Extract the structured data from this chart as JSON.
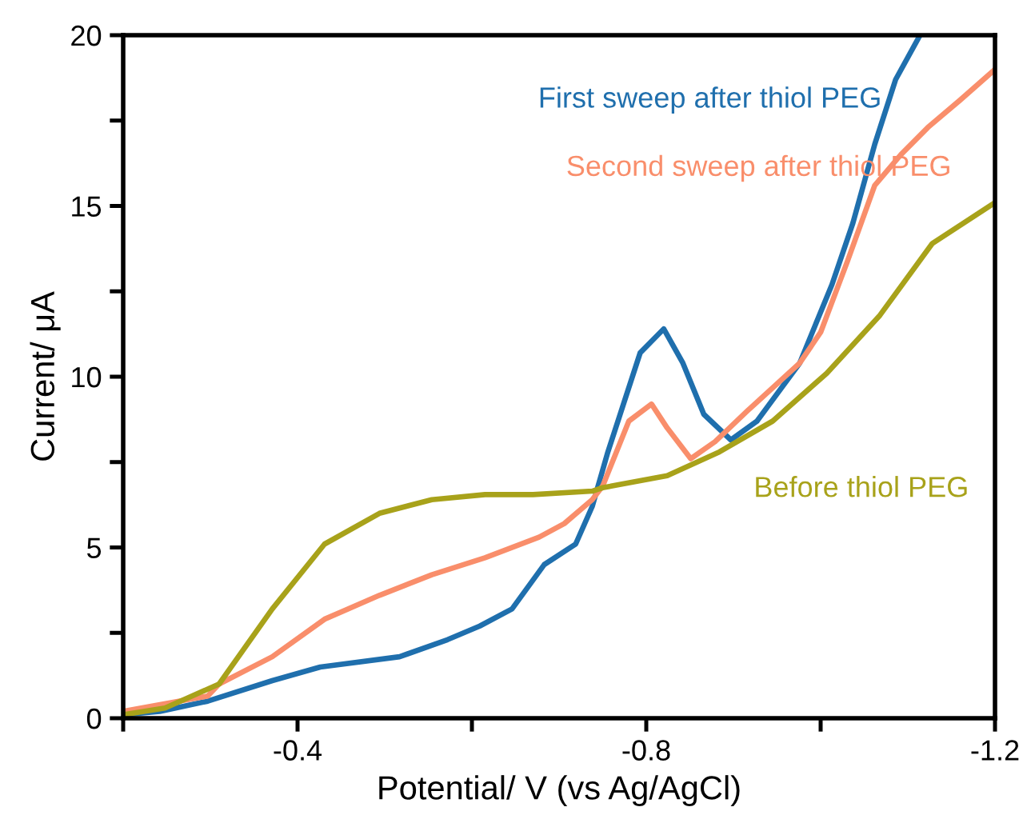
{
  "chart_data": {
    "type": "line",
    "xlabel": "Potential/ V (vs Ag/AgCl)",
    "ylabel": "Current/ μA",
    "xlim": [
      -0.2,
      -1.2
    ],
    "xticks": [
      {
        "value": -0.2,
        "label": null
      },
      -0.4,
      {
        "value": -0.6,
        "label": null
      },
      -0.8,
      {
        "value": -1.0,
        "label": null
      },
      -1.2
    ],
    "ylim": [
      0,
      20
    ],
    "yticks": [
      0,
      {
        "value": 2.5,
        "label": null
      },
      5,
      {
        "value": 7.5,
        "label": null
      },
      10,
      {
        "value": 12.5,
        "label": null
      },
      15,
      {
        "value": 17.5,
        "label": null
      },
      20
    ],
    "grid": false,
    "legend": false,
    "marker": "none",
    "line_style": "solid",
    "series": [
      {
        "name": "First sweep after thiol PEG",
        "color": "#1f6fad",
        "x": [
          -0.2,
          -0.242,
          -0.297,
          -0.371,
          -0.426,
          -0.517,
          -0.572,
          -0.609,
          -0.646,
          -0.683,
          -0.719,
          -0.738,
          -0.756,
          -0.793,
          -0.82,
          -0.842,
          -0.866,
          -0.897,
          -0.927,
          -0.976,
          -1.013,
          -1.037,
          -1.062,
          -1.086,
          -1.114
        ],
        "values": [
          0.1,
          0.2,
          0.5,
          1.1,
          1.5,
          1.8,
          2.3,
          2.7,
          3.2,
          4.5,
          5.1,
          6.2,
          7.8,
          10.7,
          11.4,
          10.4,
          8.9,
          8.15,
          8.7,
          10.4,
          12.7,
          14.5,
          16.8,
          18.7,
          20
        ]
      },
      {
        "name": "Second sweep after thiol PEG",
        "color": "#f98e6b",
        "x": [
          -0.2,
          -0.297,
          -0.31,
          -0.371,
          -0.431,
          -0.494,
          -0.554,
          -0.615,
          -0.677,
          -0.706,
          -0.738,
          -0.75,
          -0.78,
          -0.806,
          -0.824,
          -0.851,
          -0.879,
          -0.916,
          -0.976,
          -1.0,
          -1.031,
          -1.062,
          -1.092,
          -1.123,
          -1.16,
          -1.2
        ],
        "values": [
          0.2,
          0.65,
          1.0,
          1.8,
          2.9,
          3.6,
          4.2,
          4.7,
          5.3,
          5.7,
          6.4,
          6.8,
          8.7,
          9.2,
          8.5,
          7.6,
          8.1,
          9.0,
          10.4,
          11.3,
          13.4,
          15.6,
          16.5,
          17.3,
          18.1,
          19.0
        ]
      },
      {
        "name": "Before thiol PEG",
        "color": "#a8a21a",
        "x": [
          -0.2,
          -0.248,
          -0.31,
          -0.371,
          -0.431,
          -0.494,
          -0.554,
          -0.615,
          -0.67,
          -0.738,
          -0.75,
          -0.824,
          -0.884,
          -0.945,
          -1.007,
          -1.068,
          -1.128,
          -1.2
        ],
        "values": [
          0.1,
          0.3,
          1.0,
          3.2,
          5.1,
          6.0,
          6.4,
          6.55,
          6.55,
          6.65,
          6.75,
          7.1,
          7.8,
          8.7,
          10.1,
          11.8,
          13.9,
          15.1
        ]
      }
    ]
  }
}
